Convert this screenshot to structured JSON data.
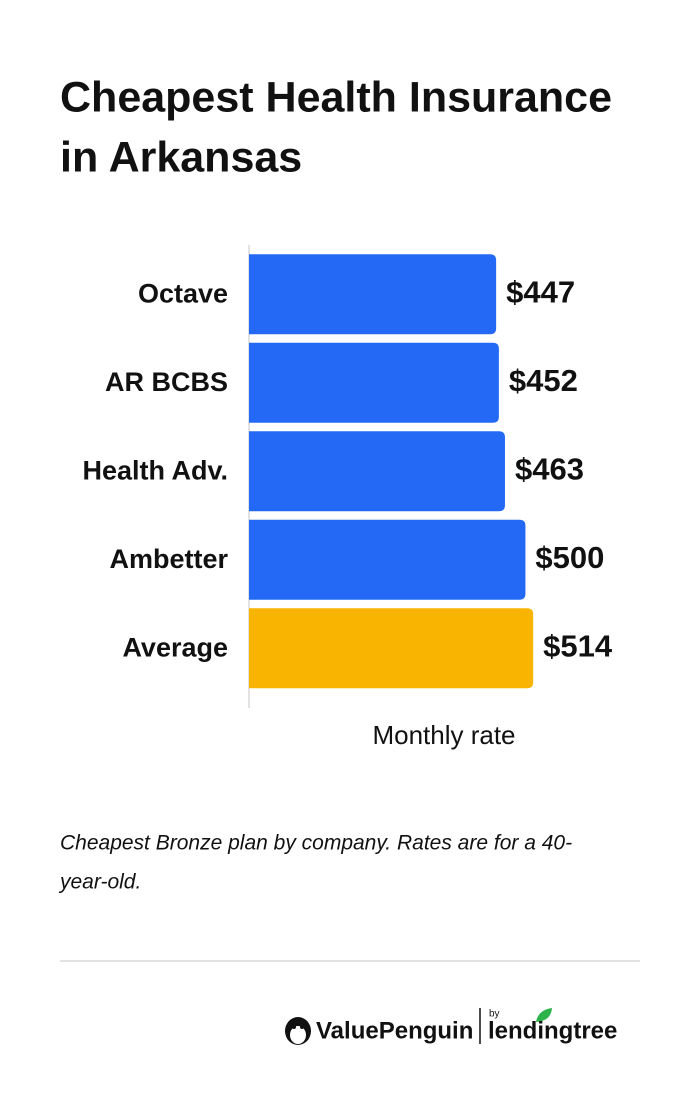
{
  "chart_data": {
    "type": "barh",
    "title": [
      "Cheapest Health Insurance",
      "in Arkansas"
    ],
    "categories": [
      "Octave",
      "AR BCBS",
      "Health Adv.",
      "Ambetter",
      "Average"
    ],
    "values": [
      447,
      452,
      463,
      500,
      514
    ],
    "value_labels": [
      "$447",
      "$452",
      "$463",
      "$500",
      "$514"
    ],
    "colors": [
      "#2369f6",
      "#2369f6",
      "#2369f6",
      "#2369f6",
      "#f8b400"
    ],
    "xlim": [
      0,
      700
    ],
    "xlabel": "Monthly rate",
    "note": [
      "Cheapest Bronze plan by company. Rates are for a 40-",
      "year-old."
    ]
  },
  "footer": {
    "brand": "ValuePenguin",
    "by": "by",
    "partner": "lendingtree"
  }
}
